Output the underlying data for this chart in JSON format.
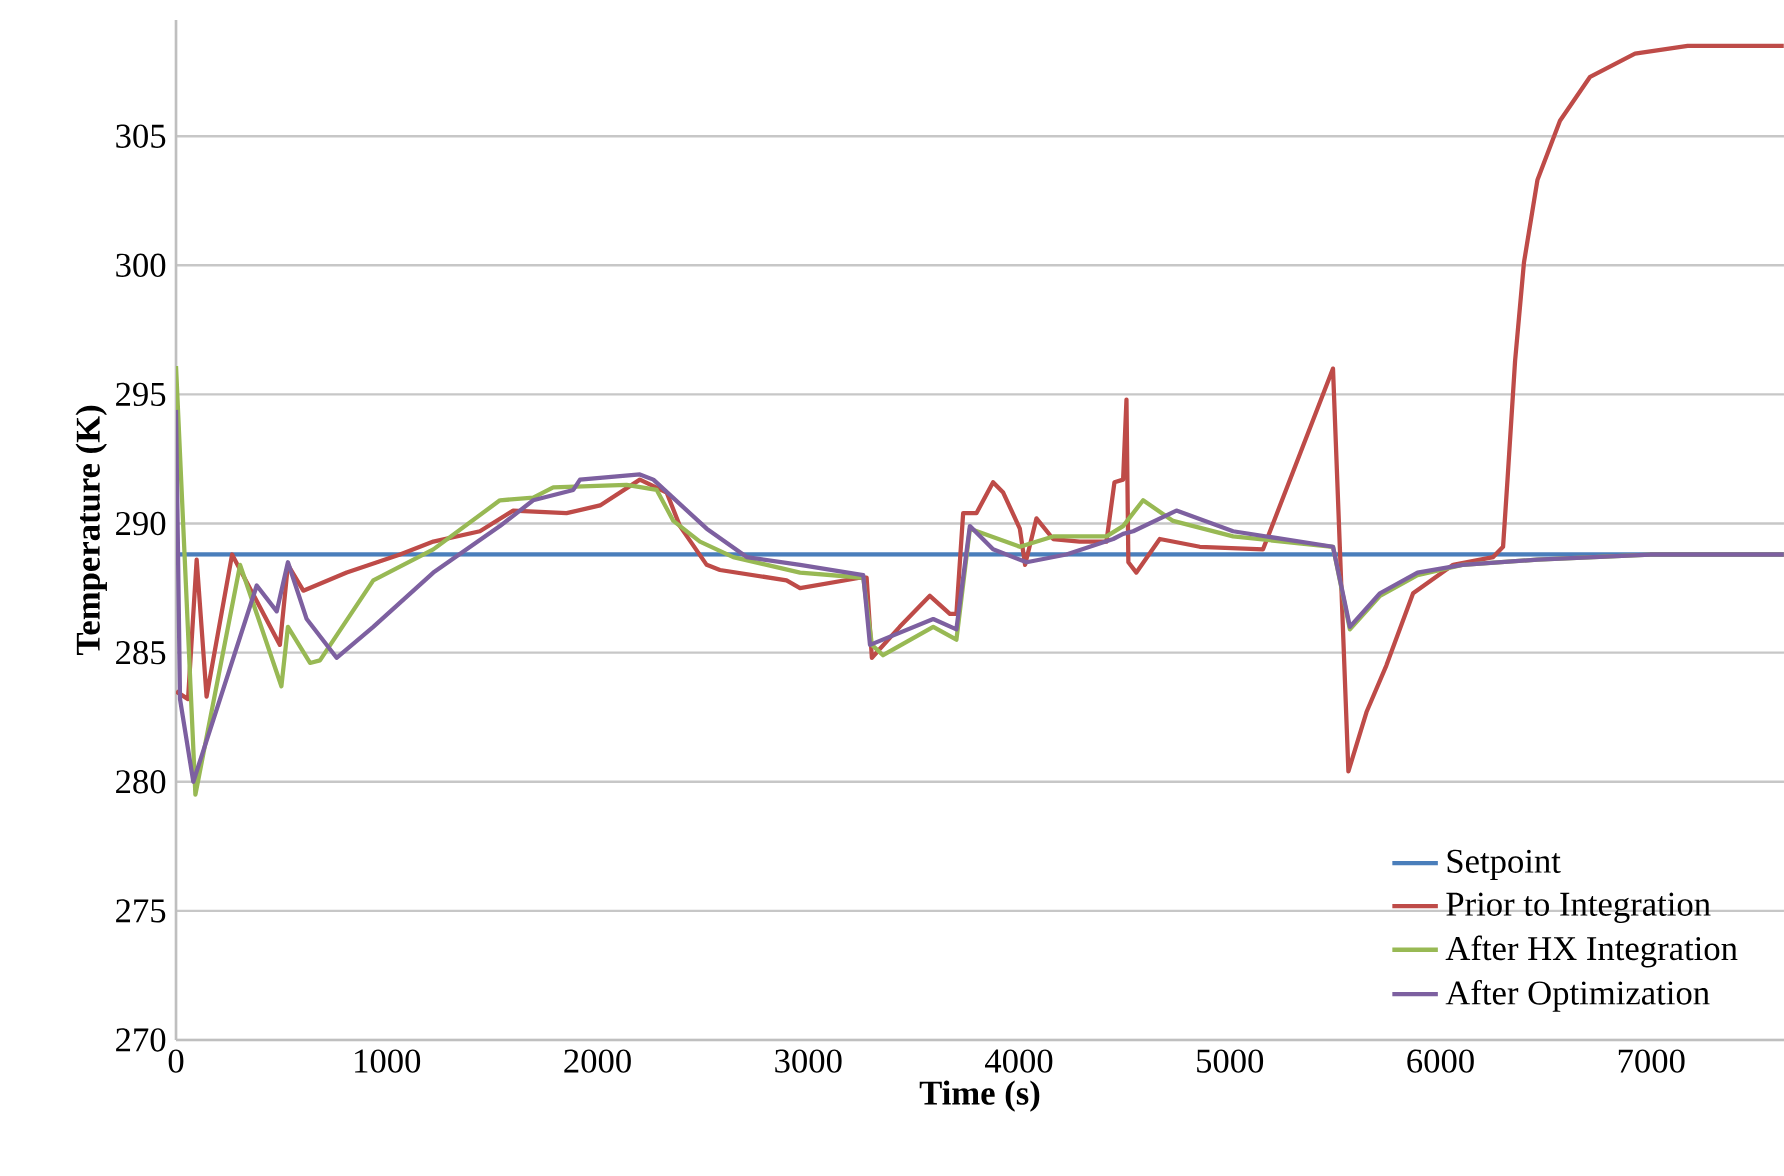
{
  "chart_data": {
    "type": "line",
    "xlabel": "Time (s)",
    "ylabel": "Temperature (K)",
    "xlim": [
      0,
      7630
    ],
    "ylim": [
      270,
      309.5
    ],
    "xticks": [
      0,
      1000,
      2000,
      3000,
      4000,
      5000,
      6000,
      7000
    ],
    "yticks": [
      270,
      275,
      280,
      285,
      290,
      295,
      300,
      305
    ],
    "grid": "y",
    "legend": "bottom right",
    "marker": "none",
    "line_style": "solid",
    "series": [
      {
        "name": "Setpoint",
        "color": "#4a7ebb",
        "x": [
          0,
          7630
        ],
        "values": [
          288.8,
          288.8
        ]
      },
      {
        "name": "Prior to Integration",
        "color": "#be4b48",
        "x": [
          0,
          57,
          98,
          145,
          266,
          493,
          531,
          604,
          810,
          1063,
          1221,
          1442,
          1600,
          1853,
          2012,
          2201,
          2328,
          2391,
          2518,
          2581,
          2897,
          2961,
          3245,
          3277,
          3302,
          3434,
          3577,
          3672,
          3703,
          3735,
          3798,
          3877,
          3925,
          4004,
          4029,
          4083,
          4162,
          4288,
          4415,
          4453,
          4494,
          4510,
          4519,
          4557,
          4668,
          4858,
          5158,
          5490,
          5563,
          5649,
          5743,
          5870,
          6060,
          6250,
          6297,
          6318,
          6354,
          6396,
          6460,
          6567,
          6710,
          6923,
          7173,
          7629
        ],
        "values": [
          283.5,
          283.2,
          288.6,
          283.3,
          288.8,
          285.3,
          288.4,
          287.4,
          288.1,
          288.8,
          289.3,
          289.7,
          290.5,
          290.4,
          290.7,
          291.7,
          291.2,
          289.9,
          288.4,
          288.2,
          287.8,
          287.5,
          287.9,
          287.9,
          284.8,
          286.0,
          287.2,
          286.5,
          286.5,
          290.4,
          290.4,
          291.6,
          291.2,
          289.8,
          288.4,
          290.2,
          289.4,
          289.3,
          289.3,
          291.6,
          291.7,
          294.8,
          288.5,
          288.1,
          289.4,
          289.1,
          289.0,
          296.0,
          280.4,
          282.7,
          284.5,
          287.3,
          288.4,
          288.7,
          289.1,
          291.7,
          296.3,
          300.1,
          303.3,
          305.6,
          307.3,
          308.2,
          308.5,
          308.5
        ]
      },
      {
        "name": "After HX Integration",
        "color": "#98b954",
        "x": [
          0,
          92,
          304,
          500,
          531,
          636,
          683,
          936,
          1221,
          1537,
          1695,
          1790,
          2138,
          2281,
          2360,
          2486,
          2644,
          2961,
          3261,
          3302,
          3355,
          3593,
          3703,
          3767,
          4004,
          4162,
          4415,
          4494,
          4589,
          4731,
          5016,
          5490,
          5570,
          5713,
          5891,
          6104,
          6460,
          6995,
          7629
        ],
        "values": [
          296.1,
          279.5,
          288.4,
          283.7,
          286.0,
          284.6,
          284.7,
          287.8,
          289.0,
          290.9,
          291.0,
          291.4,
          291.5,
          291.3,
          290.1,
          289.3,
          288.7,
          288.1,
          287.9,
          285.3,
          284.9,
          286.0,
          285.5,
          289.8,
          289.1,
          289.5,
          289.5,
          289.9,
          290.9,
          290.1,
          289.5,
          289.1,
          285.9,
          287.2,
          288.0,
          288.4,
          288.6,
          288.8,
          288.8
        ]
      },
      {
        "name": "After Optimization",
        "color": "#7d60a0",
        "x": [
          0,
          19,
          82,
          383,
          478,
          531,
          620,
          762,
          936,
          1221,
          1537,
          1695,
          1885,
          1917,
          2201,
          2265,
          2518,
          2708,
          2961,
          3261,
          3293,
          3593,
          3703,
          3767,
          3877,
          4036,
          4225,
          4447,
          4494,
          4542,
          4747,
          5016,
          5490,
          5570,
          5713,
          5891,
          6104,
          6460,
          6995,
          7629
        ],
        "values": [
          294.4,
          283.2,
          280.0,
          287.6,
          286.6,
          288.5,
          286.3,
          284.8,
          286.0,
          288.1,
          289.9,
          290.9,
          291.3,
          291.7,
          291.9,
          291.7,
          289.8,
          288.7,
          288.4,
          288.0,
          285.3,
          286.3,
          285.9,
          289.9,
          289.0,
          288.5,
          288.8,
          289.4,
          289.6,
          289.7,
          290.5,
          289.7,
          289.1,
          286.0,
          287.3,
          288.1,
          288.4,
          288.6,
          288.8,
          288.8
        ]
      }
    ]
  }
}
